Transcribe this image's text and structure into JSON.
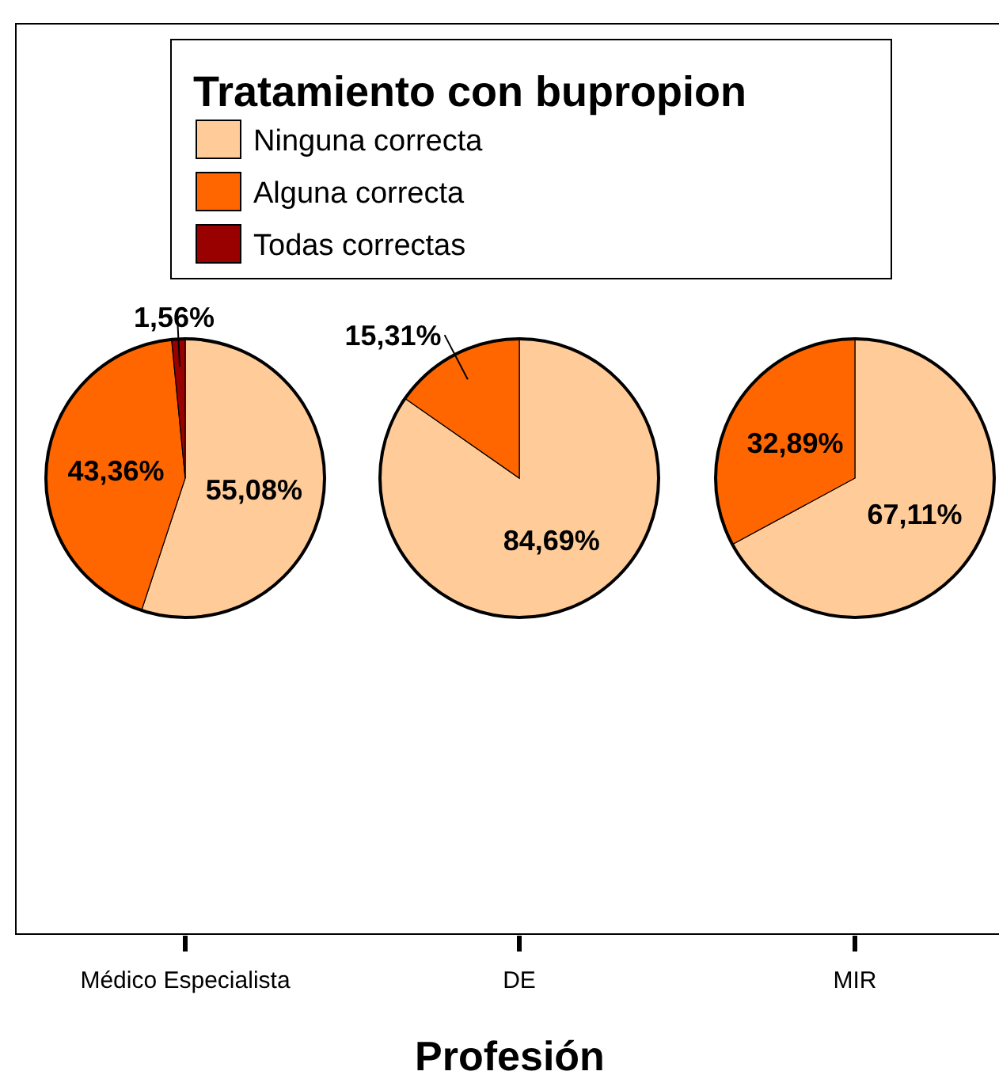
{
  "chart_data": [
    {
      "type": "pie",
      "title": "Médico Especialista",
      "categories": [
        "Ninguna correcta",
        "Alguna correcta",
        "Todas correctas"
      ],
      "values": [
        55.08,
        43.36,
        1.56
      ],
      "colors": [
        "#ffcc99",
        "#ff6600",
        "#990000"
      ],
      "value_labels": [
        "55,08%",
        "43,36%",
        "1,56%"
      ],
      "legend": "top",
      "legend_title": "Tratamiento con bupropion",
      "xlabel": "Profesión"
    },
    {
      "type": "pie",
      "title": "DE",
      "values": [
        84.69,
        15.31
      ],
      "colors": [
        "#ffcc99",
        "#ff6600"
      ],
      "value_labels": [
        "84,69%",
        "15,31%"
      ]
    },
    {
      "type": "pie",
      "title": "MIR",
      "values": [
        67.11,
        32.89
      ],
      "colors": [
        "#ffcc99",
        "#ff6600"
      ],
      "value_labels": [
        "67,11%",
        "32,89%"
      ]
    }
  ]
}
